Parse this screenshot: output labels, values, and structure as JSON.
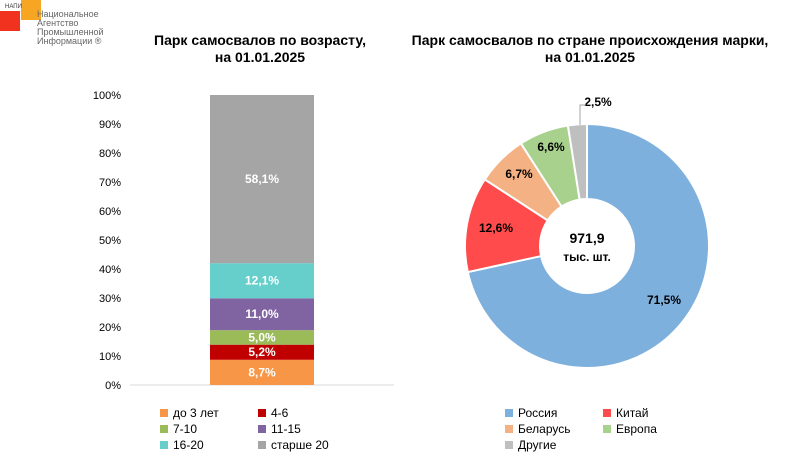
{
  "logo": {
    "abbr": "НАПИ",
    "lines": [
      "Национальное",
      "Агентство",
      "Промышленной",
      "Информации ®"
    ]
  },
  "chart_data": [
    {
      "type": "bar",
      "stacked": true,
      "title": "Парк самосвалов по возрасту, на 01.01.2025",
      "title_lines": [
        "Парк самосвалов по возрасту,",
        "на 01.01.2025"
      ],
      "ylim": [
        0,
        100
      ],
      "yticks": [
        "0%",
        "10%",
        "20%",
        "30%",
        "40%",
        "50%",
        "60%",
        "70%",
        "80%",
        "90%",
        "100%"
      ],
      "series": [
        {
          "name": "до 3 лет",
          "value": 8.7,
          "label": "8,7%",
          "color": "#F79646"
        },
        {
          "name": "4-6",
          "value": 5.2,
          "label": "5,2%",
          "color": "#C00000"
        },
        {
          "name": "7-10",
          "value": 5.0,
          "label": "5,0%",
          "color": "#9BBB59"
        },
        {
          "name": "11-15",
          "value": 11.0,
          "label": "11,0%",
          "color": "#8064A2"
        },
        {
          "name": "16-20",
          "value": 12.1,
          "label": "12,1%",
          "color": "#66CFCB"
        },
        {
          "name": "старше 20",
          "value": 58.1,
          "label": "58,1%",
          "color": "#A5A5A5"
        }
      ],
      "legend": "bottom"
    },
    {
      "type": "pie",
      "donut": true,
      "title": "Парк самосвалов по стране происхождения марки, на 01.01.2025",
      "title_lines": [
        "Парк самосвалов по стране происхождения марки,",
        "на 01.01.2025"
      ],
      "center_label": [
        "971,9",
        "тыс. шт."
      ],
      "slices": [
        {
          "name": "Россия",
          "value": 71.5,
          "label": "71,5%",
          "color": "#7EB0DE"
        },
        {
          "name": "Китай",
          "value": 12.6,
          "label": "12,6%",
          "color": "#FF4B4B"
        },
        {
          "name": "Беларусь",
          "value": 6.7,
          "label": "6,7%",
          "color": "#F4B183"
        },
        {
          "name": "Европа",
          "value": 6.6,
          "label": "6,6%",
          "color": "#A9D18E"
        },
        {
          "name": "Другие",
          "value": 2.5,
          "label": "2,5%",
          "color": "#BFBFBF"
        }
      ],
      "legend": "bottom"
    }
  ]
}
